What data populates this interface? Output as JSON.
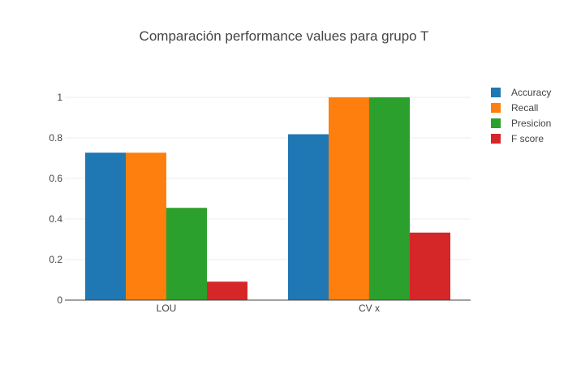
{
  "chart_data": {
    "type": "bar",
    "title": "Comparación performance values para grupo T",
    "xlabel": "",
    "ylabel": "",
    "categories": [
      "LOU",
      "CV x"
    ],
    "ylim": [
      0,
      1.08
    ],
    "yticks": [
      "0",
      "0.2",
      "0.4",
      "0.6",
      "0.8",
      "1"
    ],
    "grid": true,
    "legend_position": "right",
    "series": [
      {
        "name": "Accuracy",
        "color": "#1f77b4",
        "values": [
          0.727,
          0.818
        ]
      },
      {
        "name": "Recall",
        "color": "#ff7f0e",
        "values": [
          0.727,
          1.0
        ]
      },
      {
        "name": "Presicion",
        "color": "#2ca02c",
        "values": [
          0.455,
          1.0
        ]
      },
      {
        "name": "F score",
        "color": "#d62728",
        "values": [
          0.091,
          0.333
        ]
      }
    ]
  }
}
